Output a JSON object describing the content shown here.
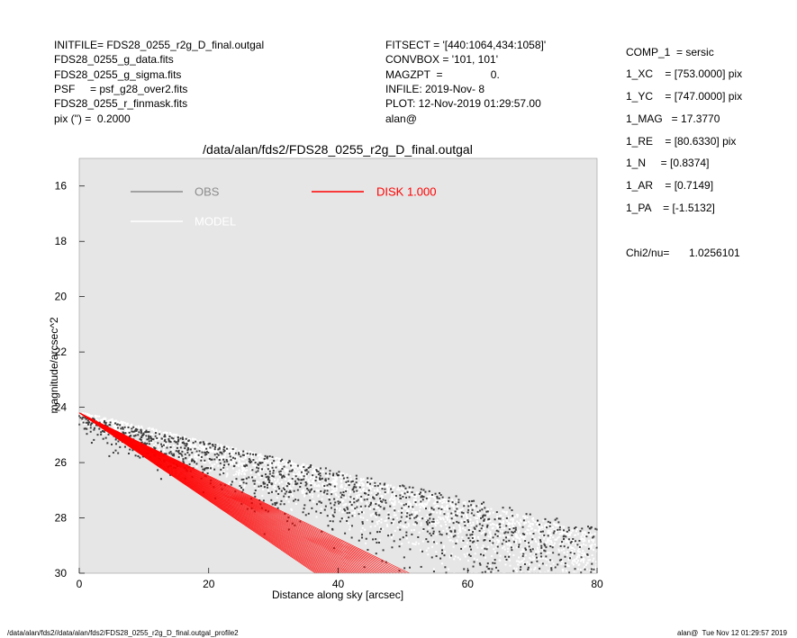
{
  "header": {
    "left": [
      "INITFILE= FDS28_0255_r2g_D_final.outgal",
      "FDS28_0255_g_data.fits",
      "FDS28_0255_g_sigma.fits",
      "PSF     = psf_g28_over2.fits",
      "FDS28_0255_r_finmask.fits",
      "pix (\") =  0.2000"
    ],
    "middle": [
      "FITSECT = '[440:1064,434:1058]'",
      "CONVBOX = '101, 101'",
      "MAGZPT  =                0.",
      "INFILE: 2019-Nov- 8",
      "PLOT: 12-Nov-2019 01:29:57.00",
      "alan@"
    ],
    "right": [
      "COMP_1  = sersic",
      "1_XC    = [753.0000] pix",
      "1_YC    = [747.0000] pix",
      "1_MAG   = 17.3770",
      "1_RE    = [80.6330] pix",
      "1_N     = [0.8374]",
      "1_AR    = [0.7149]",
      "1_PA    = [-1.5132]"
    ],
    "chi2_label": "Chi2/nu=",
    "chi2_value": "1.0256101"
  },
  "footer": {
    "path": "/data/alan/fds2//data/alan/fds2/FDS28_0255_r2g_D_final.outgal_profile2",
    "stamp": "alan@  Tue Nov 12 01:29:57 2019"
  },
  "chart_data": {
    "type": "scatter",
    "title": "/data/alan/fds2/FDS28_0255_r2g_D_final.outgal",
    "xlabel": "Distance along sky [arcsec]",
    "ylabel": "magnitude/arcsec^2",
    "xlim": [
      0,
      80
    ],
    "ylim": [
      30,
      15
    ],
    "x_ticks": [
      "0",
      "20",
      "40",
      "60",
      "80"
    ],
    "y_ticks": [
      "16",
      "18",
      "20",
      "22",
      "24",
      "26",
      "28",
      "30"
    ],
    "background": "#e6e6e6",
    "grid": false,
    "legend": {
      "placement": "top",
      "entries": [
        {
          "name": "OBS",
          "color": "#8c8c8c"
        },
        {
          "name": "MODEL",
          "color": "#ffffff"
        },
        {
          "name": "DISK  1.000",
          "color": "#ff0000"
        }
      ]
    },
    "series": [
      {
        "name": "OBS",
        "description_points": "dark grey points scattered between r=0 and r=80 arcsec",
        "x_range": [
          0,
          80
        ],
        "y_range": [
          24.0,
          30.0
        ]
      },
      {
        "name": "MODEL",
        "description_points": "white points scattered between r=0 and r=80 arcsec",
        "x_range": [
          0,
          80
        ],
        "y_range": [
          24.0,
          30.0
        ]
      },
      {
        "name": "DISK  1.000",
        "envelope_start": {
          "x": 0,
          "y": 24.2
        },
        "envelope_steep": {
          "x": 36.5,
          "y": 30.0
        },
        "envelope_shallow": {
          "x": 51,
          "y": 30.0
        }
      }
    ]
  }
}
